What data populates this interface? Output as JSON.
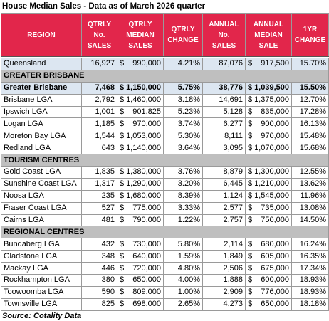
{
  "title": "House Median Sales - Data as of March 2026 quarter",
  "currency": "$",
  "table": {
    "header": [
      "REGION",
      "QTRLY\nNo.\nSALES",
      "QTRLY\nMEDIAN\nSALES",
      "QTRLY\nCHANGE",
      "ANNUAL\nNo.\nSALES",
      "ANNUAL\nMEDIAN\nSALE",
      "1YR\nCHANGE"
    ],
    "total": [
      "Queensland",
      "16,927",
      "990,000",
      "4.21%",
      "87,076",
      "917,500",
      "15.70%"
    ],
    "sections": [
      {
        "title": "GREATER BRISBANE",
        "total": [
          "Greater Brisbane",
          "7,468",
          "1,150,000",
          "5.75%",
          "38,776",
          "1,039,500",
          "15.50%"
        ],
        "rows": [
          [
            "Brisbane LGA",
            "2,792",
            "1,460,000",
            "3.18%",
            "14,691",
            "1,375,000",
            "12.70%"
          ],
          [
            "Ipswich LGA",
            "1,001",
            "901,825",
            "5.23%",
            "5,128",
            "835,000",
            "17.28%"
          ],
          [
            "Logan LGA",
            "1,185",
            "970,000",
            "3.74%",
            "6,277",
            "900,000",
            "16.13%"
          ],
          [
            "Moreton Bay LGA",
            "1,544",
            "1,053,000",
            "5.30%",
            "8,111",
            "970,000",
            "15.48%"
          ],
          [
            "Redland LGA",
            "643",
            "1,140,000",
            "3.64%",
            "3,095",
            "1,070,000",
            "15.68%"
          ]
        ]
      },
      {
        "title": "TOURISM CENTRES",
        "rows": [
          [
            "Gold Coast LGA",
            "1,835",
            "1,380,000",
            "3.76%",
            "8,879",
            "1,300,000",
            "12.55%"
          ],
          [
            "Sunshine Coast LGA",
            "1,317",
            "1,290,000",
            "3.20%",
            "6,445",
            "1,210,000",
            "13.62%"
          ],
          [
            "Noosa LGA",
            "235",
            "1,680,000",
            "8.39%",
            "1,124",
            "1,545,000",
            "11.96%"
          ],
          [
            "Fraser Coast LGA",
            "527",
            "775,000",
            "3.33%",
            "2,577",
            "735,000",
            "13.08%"
          ],
          [
            "Cairns LGA",
            "481",
            "790,000",
            "1.22%",
            "2,757",
            "750,000",
            "14.50%"
          ]
        ]
      },
      {
        "title": "REGIONAL CENTRES",
        "rows": [
          [
            "Bundaberg LGA",
            "432",
            "730,000",
            "5.80%",
            "2,114",
            "680,000",
            "16.24%"
          ],
          [
            "Gladstone LGA",
            "348",
            "640,000",
            "1.59%",
            "1,849",
            "605,000",
            "16.35%"
          ],
          [
            "Mackay LGA",
            "446",
            "720,000",
            "4.80%",
            "2,506",
            "675,000",
            "17.34%"
          ],
          [
            "Rockhampton LGA",
            "380",
            "650,000",
            "4.00%",
            "1,888",
            "600,000",
            "18.93%"
          ],
          [
            "Toowoomba LGA",
            "590",
            "809,000",
            "1.00%",
            "2,909",
            "776,000",
            "18.93%"
          ],
          [
            "Townsville LGA",
            "825",
            "698,000",
            "2.65%",
            "4,273",
            "650,000",
            "18.18%"
          ]
        ]
      }
    ]
  },
  "source": "Source: Cotality Data"
}
